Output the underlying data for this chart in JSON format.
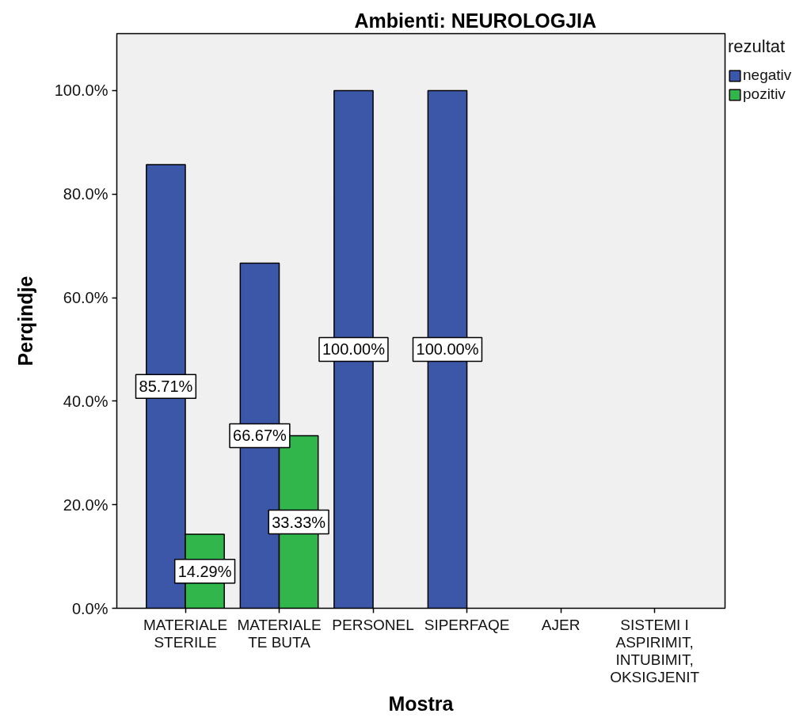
{
  "chart_data": {
    "type": "bar",
    "title": "Ambienti: NEUROLOGJIA",
    "xlabel": "Mostra",
    "ylabel": "Perqindje",
    "legend_title": "rezultat",
    "categories": [
      "MATERIALE STERILE",
      "MATERIALE TE BUTA",
      "PERSONEL",
      "SIPERFAQE",
      "AJER",
      "SISTEMI I ASPIRIMIT, INTUBIMIT, OKSIGJENIT"
    ],
    "series": [
      {
        "name": "negativ",
        "color": "#3d57a8",
        "values": [
          85.71,
          66.67,
          100,
          100,
          null,
          null
        ],
        "value_labels": [
          "85.71%",
          "66.67%",
          "100.00%",
          "100.00%",
          null,
          null
        ]
      },
      {
        "name": "pozitiv",
        "color": "#31b64b",
        "values": [
          14.29,
          33.33,
          null,
          null,
          null,
          null
        ],
        "value_labels": [
          "14.29%",
          "33.33%",
          null,
          null,
          null,
          null
        ]
      }
    ],
    "ylim": [
      0,
      111
    ],
    "yticks": [
      {
        "value": 0,
        "label": "0.0%"
      },
      {
        "value": 20,
        "label": "20.0%"
      },
      {
        "value": 40,
        "label": "40.0%"
      },
      {
        "value": 60,
        "label": "60.0%"
      },
      {
        "value": 80,
        "label": "80.0%"
      },
      {
        "value": 100,
        "label": "100.0%"
      }
    ],
    "legend": "top right"
  }
}
